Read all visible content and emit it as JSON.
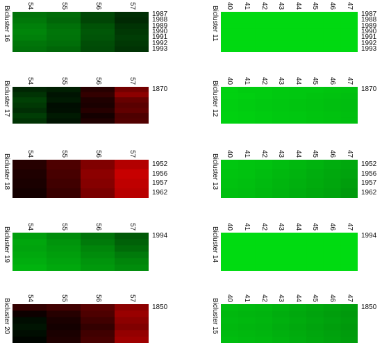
{
  "chart_data": [
    {
      "type": "heatmap",
      "title": "Bicluster 16",
      "columns": [
        "54",
        "55",
        "56",
        "57"
      ],
      "rows": [
        "1987",
        "1988",
        "1989",
        "1990",
        "1991",
        "1992",
        "1993"
      ],
      "values": [
        [
          -0.45,
          -0.42,
          -0.28,
          -0.18
        ],
        [
          -0.47,
          -0.4,
          -0.27,
          -0.16
        ],
        [
          -0.5,
          -0.44,
          -0.32,
          -0.2
        ],
        [
          -0.52,
          -0.46,
          -0.34,
          -0.22
        ],
        [
          -0.5,
          -0.45,
          -0.33,
          -0.24
        ],
        [
          -0.46,
          -0.43,
          -0.3,
          -0.22
        ],
        [
          -0.44,
          -0.4,
          -0.29,
          -0.2
        ]
      ]
    },
    {
      "type": "heatmap",
      "title": "Bicluster 17",
      "columns": [
        "54",
        "55",
        "56",
        "57"
      ],
      "rows": [
        "1870",
        "",
        "",
        "",
        "",
        "",
        ""
      ],
      "values": [
        [
          -0.15,
          -0.12,
          0.15,
          0.45
        ],
        [
          -0.2,
          -0.08,
          0.2,
          0.55
        ],
        [
          -0.25,
          -0.1,
          0.12,
          0.4
        ],
        [
          -0.22,
          -0.05,
          0.1,
          0.35
        ],
        [
          -0.18,
          -0.06,
          0.15,
          0.38
        ],
        [
          -0.24,
          -0.1,
          0.08,
          0.3
        ],
        [
          -0.2,
          -0.08,
          0.12,
          0.32
        ]
      ]
    },
    {
      "type": "heatmap",
      "title": "Bicluster 18",
      "columns": [
        "54",
        "55",
        "56",
        "57"
      ],
      "rows": [
        "1952",
        "1956",
        "1957",
        "1962"
      ],
      "values": [
        [
          0.15,
          0.3,
          0.5,
          0.7
        ],
        [
          0.12,
          0.28,
          0.55,
          0.78
        ],
        [
          0.1,
          0.25,
          0.52,
          0.75
        ],
        [
          0.08,
          0.22,
          0.48,
          0.72
        ]
      ]
    },
    {
      "type": "heatmap",
      "title": "Bicluster 19",
      "columns": [
        "54",
        "55",
        "56",
        "57"
      ],
      "rows": [
        "1994",
        "",
        "",
        "",
        "",
        ""
      ],
      "values": [
        [
          -0.62,
          -0.55,
          -0.45,
          -0.35
        ],
        [
          -0.65,
          -0.58,
          -0.48,
          -0.38
        ],
        [
          -0.64,
          -0.6,
          -0.52,
          -0.42
        ],
        [
          -0.66,
          -0.62,
          -0.55,
          -0.48
        ],
        [
          -0.68,
          -0.64,
          -0.58,
          -0.52
        ],
        [
          -0.7,
          -0.66,
          -0.6,
          -0.55
        ]
      ]
    },
    {
      "type": "heatmap",
      "title": "Bicluster 20",
      "columns": [
        "54",
        "55",
        "56",
        "57"
      ],
      "rows": [
        "1850",
        "",
        "",
        "",
        "",
        ""
      ],
      "values": [
        [
          0.2,
          0.25,
          0.35,
          0.55
        ],
        [
          0.05,
          0.15,
          0.3,
          0.6
        ],
        [
          -0.05,
          0.1,
          0.25,
          0.55
        ],
        [
          -0.08,
          0.08,
          0.2,
          0.5
        ],
        [
          -0.05,
          0.1,
          0.25,
          0.58
        ],
        [
          -0.02,
          0.12,
          0.28,
          0.62
        ]
      ]
    },
    {
      "type": "heatmap",
      "title": "Bicluster 11",
      "columns": [
        "40",
        "41",
        "42",
        "43",
        "44",
        "45",
        "46",
        "47"
      ],
      "rows": [
        "1987",
        "1988",
        "1989",
        "1990",
        "1991",
        "1992",
        "1993"
      ],
      "values": [
        [
          -0.85,
          -0.85,
          -0.85,
          -0.85,
          -0.85,
          -0.85,
          -0.85,
          -0.85
        ],
        [
          -0.85,
          -0.85,
          -0.85,
          -0.85,
          -0.85,
          -0.85,
          -0.85,
          -0.85
        ],
        [
          -0.85,
          -0.85,
          -0.85,
          -0.85,
          -0.85,
          -0.85,
          -0.85,
          -0.85
        ],
        [
          -0.85,
          -0.85,
          -0.85,
          -0.85,
          -0.85,
          -0.85,
          -0.85,
          -0.85
        ],
        [
          -0.85,
          -0.85,
          -0.85,
          -0.85,
          -0.85,
          -0.85,
          -0.85,
          -0.85
        ],
        [
          -0.85,
          -0.85,
          -0.85,
          -0.85,
          -0.85,
          -0.85,
          -0.85,
          -0.85
        ],
        [
          -0.85,
          -0.85,
          -0.85,
          -0.85,
          -0.85,
          -0.85,
          -0.85,
          -0.85
        ]
      ]
    },
    {
      "type": "heatmap",
      "title": "Bicluster 12",
      "columns": [
        "40",
        "41",
        "42",
        "43",
        "44",
        "45",
        "46",
        "47"
      ],
      "rows": [
        "1870",
        "",
        "",
        "",
        "",
        ""
      ],
      "values": [
        [
          -0.82,
          -0.8,
          -0.8,
          -0.79,
          -0.78,
          -0.78,
          -0.77,
          -0.76
        ],
        [
          -0.82,
          -0.81,
          -0.8,
          -0.79,
          -0.78,
          -0.77,
          -0.76,
          -0.75
        ],
        [
          -0.81,
          -0.8,
          -0.79,
          -0.78,
          -0.77,
          -0.76,
          -0.75,
          -0.74
        ],
        [
          -0.81,
          -0.8,
          -0.79,
          -0.78,
          -0.77,
          -0.76,
          -0.75,
          -0.74
        ],
        [
          -0.82,
          -0.81,
          -0.8,
          -0.79,
          -0.78,
          -0.77,
          -0.76,
          -0.75
        ],
        [
          -0.82,
          -0.81,
          -0.8,
          -0.79,
          -0.78,
          -0.77,
          -0.76,
          -0.75
        ]
      ]
    },
    {
      "type": "heatmap",
      "title": "Bicluster 13",
      "columns": [
        "40",
        "41",
        "42",
        "43",
        "44",
        "45",
        "46",
        "47"
      ],
      "rows": [
        "1952",
        "1956",
        "1957",
        "1962"
      ],
      "values": [
        [
          -0.78,
          -0.77,
          -0.76,
          -0.74,
          -0.72,
          -0.7,
          -0.68,
          -0.66
        ],
        [
          -0.77,
          -0.76,
          -0.74,
          -0.72,
          -0.7,
          -0.68,
          -0.66,
          -0.64
        ],
        [
          -0.76,
          -0.75,
          -0.73,
          -0.71,
          -0.69,
          -0.67,
          -0.65,
          -0.62
        ],
        [
          -0.75,
          -0.74,
          -0.72,
          -0.7,
          -0.68,
          -0.66,
          -0.64,
          -0.6
        ]
      ]
    },
    {
      "type": "heatmap",
      "title": "Bicluster 14",
      "columns": [
        "40",
        "41",
        "42",
        "43",
        "44",
        "45",
        "46",
        "47"
      ],
      "rows": [
        "1994",
        "",
        "",
        "",
        "",
        ""
      ],
      "values": [
        [
          -0.86,
          -0.86,
          -0.86,
          -0.86,
          -0.86,
          -0.86,
          -0.86,
          -0.86
        ],
        [
          -0.86,
          -0.86,
          -0.86,
          -0.86,
          -0.86,
          -0.86,
          -0.86,
          -0.86
        ],
        [
          -0.86,
          -0.86,
          -0.86,
          -0.86,
          -0.86,
          -0.86,
          -0.86,
          -0.86
        ],
        [
          -0.86,
          -0.86,
          -0.86,
          -0.86,
          -0.86,
          -0.86,
          -0.86,
          -0.86
        ],
        [
          -0.86,
          -0.86,
          -0.86,
          -0.86,
          -0.86,
          -0.86,
          -0.86,
          -0.86
        ],
        [
          -0.86,
          -0.86,
          -0.86,
          -0.86,
          -0.86,
          -0.86,
          -0.86,
          -0.86
        ]
      ]
    },
    {
      "type": "heatmap",
      "title": "Bicluster 15",
      "columns": [
        "40",
        "41",
        "42",
        "43",
        "44",
        "45",
        "46",
        "47"
      ],
      "rows": [
        "1850",
        "",
        "",
        "",
        "",
        ""
      ],
      "values": [
        [
          -0.74,
          -0.73,
          -0.72,
          -0.7,
          -0.68,
          -0.66,
          -0.64,
          -0.62
        ],
        [
          -0.72,
          -0.71,
          -0.7,
          -0.68,
          -0.66,
          -0.64,
          -0.62,
          -0.6
        ],
        [
          -0.73,
          -0.72,
          -0.71,
          -0.69,
          -0.67,
          -0.65,
          -0.63,
          -0.61
        ],
        [
          -0.72,
          -0.71,
          -0.7,
          -0.68,
          -0.66,
          -0.64,
          -0.62,
          -0.6
        ],
        [
          -0.73,
          -0.72,
          -0.71,
          -0.69,
          -0.67,
          -0.65,
          -0.63,
          -0.61
        ],
        [
          -0.74,
          -0.73,
          -0.72,
          -0.7,
          -0.68,
          -0.66,
          -0.64,
          -0.62
        ]
      ]
    }
  ]
}
